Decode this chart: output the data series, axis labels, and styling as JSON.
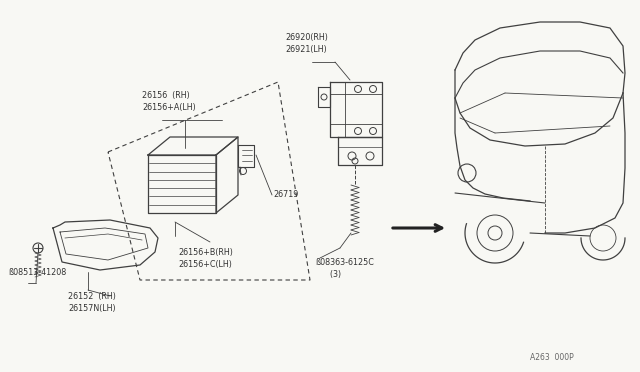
{
  "bg_color": "#f8f8f4",
  "line_color": "#404040",
  "text_color": "#333333",
  "diagram_code": "A263  000P",
  "fig_width": 6.4,
  "fig_height": 3.72,
  "dpi": 100,
  "labels": {
    "26156": "26156  (RH)\n26156+A(LH)",
    "26156b": "26156+B(RH)\n26156+C(LH)",
    "26719": "26719",
    "26920": "26920(RH)\n26921(LH)",
    "26152": "26152  (RH)\n26157N(LH)",
    "08513": "ß08513-41208",
    "08363": "ß08363-6125C\n    (3)"
  },
  "font_size": 5.8
}
